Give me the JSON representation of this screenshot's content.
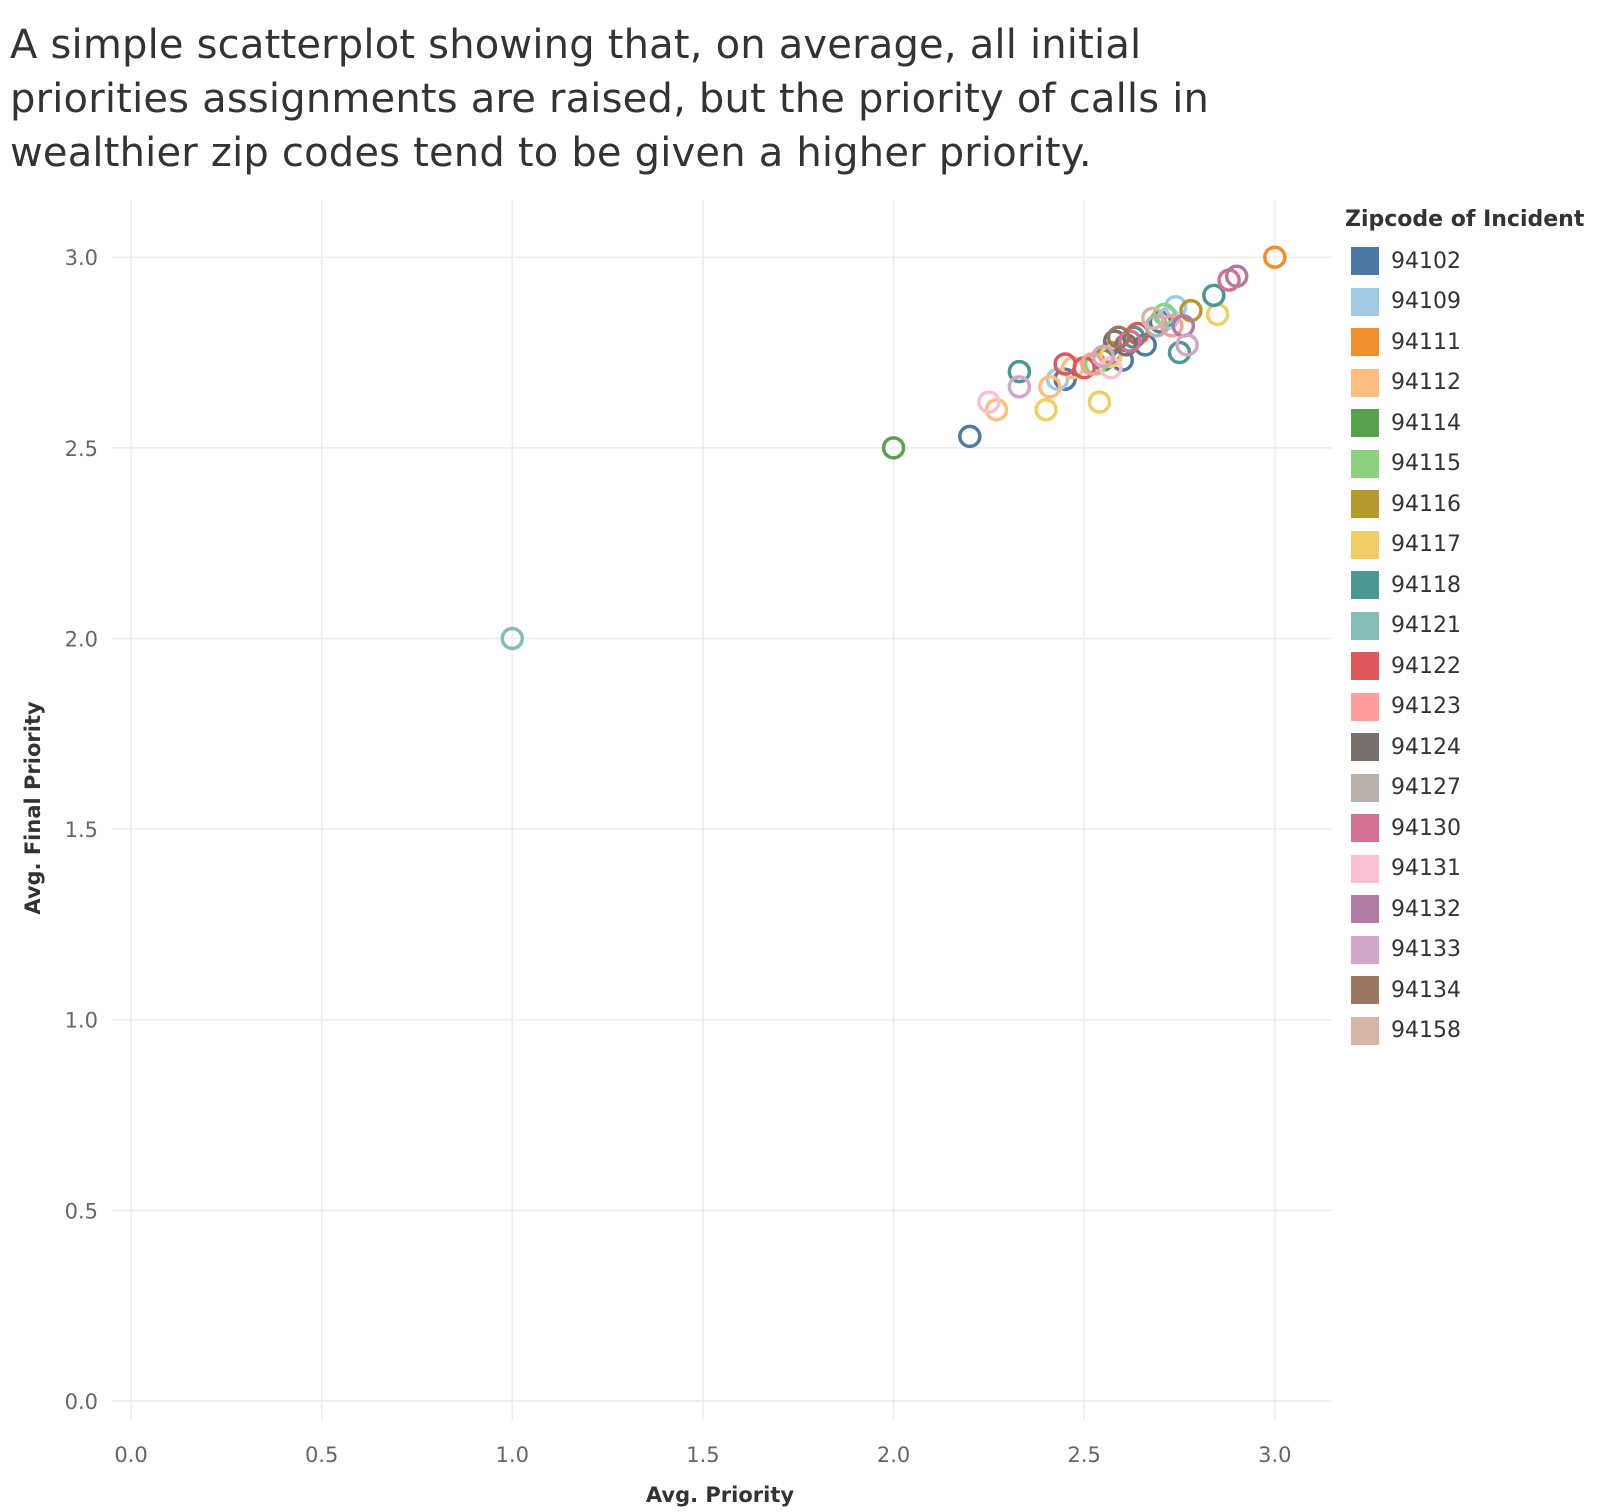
{
  "title": "A simple scatterplot showing that, on average, all initial priorities assignments are raised, but the priority of calls in wealthier zip codes tend to be given a higher priority.",
  "chart_data": {
    "type": "scatter",
    "xlabel": "Avg. Priority",
    "ylabel": "Avg. Final Priority",
    "xlim": [
      -0.05,
      3.15
    ],
    "ylim": [
      -0.05,
      3.15
    ],
    "xticks": [
      "0.0",
      "0.5",
      "1.0",
      "1.5",
      "2.0",
      "2.5",
      "3.0"
    ],
    "yticks": [
      "0.0",
      "0.5",
      "1.0",
      "1.5",
      "2.0",
      "2.5",
      "3.0"
    ],
    "grid": true,
    "marker": "hollow-circle",
    "legend_title": "Zipcode of Incident",
    "legend_position": "right",
    "series": [
      {
        "name": "94102",
        "color": "#4e79a7",
        "points": [
          [
            2.2,
            2.53
          ],
          [
            2.45,
            2.68
          ],
          [
            2.7,
            2.83
          ],
          [
            2.6,
            2.73
          ],
          [
            2.66,
            2.77
          ]
        ]
      },
      {
        "name": "94109",
        "color": "#a0cbe8",
        "points": [
          [
            2.43,
            2.68
          ],
          [
            2.74,
            2.87
          ],
          [
            2.72,
            2.84
          ]
        ]
      },
      {
        "name": "94111",
        "color": "#f28e2b",
        "points": [
          [
            3.0,
            3.0
          ]
        ]
      },
      {
        "name": "94112",
        "color": "#ffbe7d",
        "points": [
          [
            2.27,
            2.6
          ],
          [
            2.41,
            2.66
          ],
          [
            2.47,
            2.71
          ]
        ]
      },
      {
        "name": "94114",
        "color": "#59a14f",
        "points": [
          [
            2.0,
            2.5
          ],
          [
            2.55,
            2.73
          ]
        ]
      },
      {
        "name": "94115",
        "color": "#8cd17d",
        "points": [
          [
            2.53,
            2.72
          ],
          [
            2.71,
            2.85
          ]
        ]
      },
      {
        "name": "94116",
        "color": "#b6992d",
        "points": [
          [
            2.78,
            2.86
          ],
          [
            2.57,
            2.75
          ]
        ]
      },
      {
        "name": "94117",
        "color": "#f1ce63",
        "points": [
          [
            2.4,
            2.6
          ],
          [
            2.54,
            2.62
          ],
          [
            2.85,
            2.85
          ],
          [
            2.57,
            2.74
          ]
        ]
      },
      {
        "name": "94118",
        "color": "#499894",
        "points": [
          [
            2.33,
            2.7
          ],
          [
            2.75,
            2.75
          ],
          [
            2.84,
            2.9
          ],
          [
            2.63,
            2.79
          ]
        ]
      },
      {
        "name": "94121",
        "color": "#86bcb6",
        "points": [
          [
            1.0,
            2.0
          ]
        ]
      },
      {
        "name": "94122",
        "color": "#e15759",
        "points": [
          [
            2.45,
            2.72
          ],
          [
            2.5,
            2.71
          ],
          [
            2.64,
            2.8
          ]
        ]
      },
      {
        "name": "94123",
        "color": "#ff9d9a",
        "points": [
          [
            2.52,
            2.72
          ],
          [
            2.73,
            2.82
          ]
        ]
      },
      {
        "name": "94124",
        "color": "#79706e",
        "points": [
          [
            2.61,
            2.77
          ],
          [
            2.58,
            2.78
          ]
        ]
      },
      {
        "name": "94127",
        "color": "#bab0ac",
        "points": [
          [
            2.69,
            2.82
          ]
        ]
      },
      {
        "name": "94130",
        "color": "#d37295",
        "points": [
          [
            2.88,
            2.94
          ],
          [
            2.62,
            2.78
          ]
        ]
      },
      {
        "name": "94131",
        "color": "#fabfd2",
        "points": [
          [
            2.25,
            2.62
          ],
          [
            2.57,
            2.71
          ]
        ]
      },
      {
        "name": "94132",
        "color": "#b07aa1",
        "points": [
          [
            2.9,
            2.95
          ],
          [
            2.76,
            2.82
          ]
        ]
      },
      {
        "name": "94133",
        "color": "#d4a6c8",
        "points": [
          [
            2.33,
            2.66
          ],
          [
            2.55,
            2.74
          ],
          [
            2.77,
            2.77
          ]
        ]
      },
      {
        "name": "94134",
        "color": "#9d7660",
        "points": [
          [
            2.59,
            2.79
          ]
        ]
      },
      {
        "name": "94158",
        "color": "#d7b5a6",
        "points": [
          [
            2.68,
            2.84
          ]
        ]
      }
    ]
  }
}
